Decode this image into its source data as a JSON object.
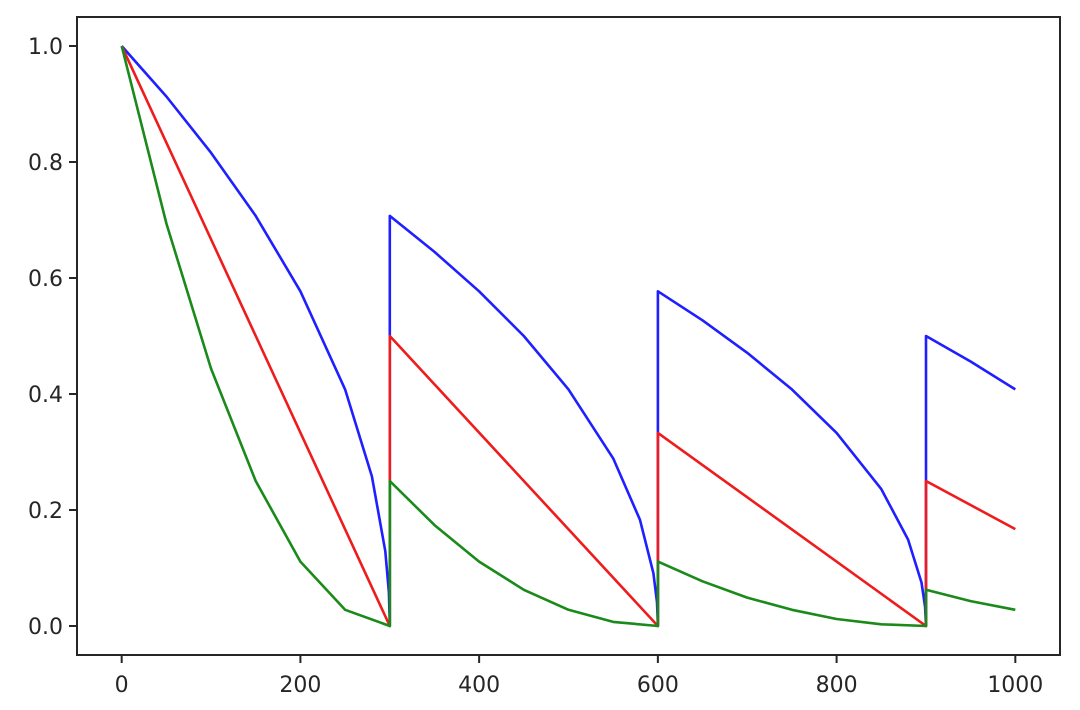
{
  "chart_data": {
    "type": "line",
    "title": "",
    "xlabel": "",
    "ylabel": "",
    "xlim": [
      -50,
      1050
    ],
    "ylim": [
      -0.05,
      1.05
    ],
    "grid": false,
    "legend": "none",
    "x_ticks": [
      0,
      200,
      400,
      600,
      800,
      1000
    ],
    "x_tick_labels": [
      "0",
      "200",
      "400",
      "600",
      "800",
      "1000"
    ],
    "y_ticks": [
      0.0,
      0.2,
      0.4,
      0.6,
      0.8,
      1.0
    ],
    "y_tick_labels": [
      "0.0",
      "0.2",
      "0.4",
      "0.6",
      "0.8",
      "1.0"
    ],
    "series": [
      {
        "color": "#1f1fff",
        "points": [
          [
            0,
            1.0
          ],
          [
            50,
            0.913
          ],
          [
            100,
            0.816
          ],
          [
            150,
            0.707
          ],
          [
            200,
            0.577
          ],
          [
            250,
            0.408
          ],
          [
            280,
            0.258
          ],
          [
            295,
            0.129
          ],
          [
            299,
            0.058
          ],
          [
            300,
            0.0
          ],
          [
            300,
            0.707
          ],
          [
            350,
            0.645
          ],
          [
            400,
            0.577
          ],
          [
            450,
            0.5
          ],
          [
            500,
            0.408
          ],
          [
            550,
            0.289
          ],
          [
            580,
            0.183
          ],
          [
            595,
            0.091
          ],
          [
            599,
            0.041
          ],
          [
            600,
            0.0
          ],
          [
            600,
            0.577
          ],
          [
            650,
            0.527
          ],
          [
            700,
            0.471
          ],
          [
            750,
            0.408
          ],
          [
            800,
            0.333
          ],
          [
            850,
            0.236
          ],
          [
            880,
            0.149
          ],
          [
            895,
            0.075
          ],
          [
            899,
            0.033
          ],
          [
            900,
            0.0
          ],
          [
            900,
            0.5
          ],
          [
            950,
            0.456
          ],
          [
            1000,
            0.408
          ]
        ]
      },
      {
        "color": "#ee1c1c",
        "points": [
          [
            0,
            1.0
          ],
          [
            300,
            0.0
          ],
          [
            300,
            0.5
          ],
          [
            600,
            0.0
          ],
          [
            600,
            0.333
          ],
          [
            900,
            0.0
          ],
          [
            900,
            0.25
          ],
          [
            1000,
            0.167
          ]
        ]
      },
      {
        "color": "#1a8a1a",
        "points": [
          [
            0,
            1.0
          ],
          [
            50,
            0.694
          ],
          [
            100,
            0.444
          ],
          [
            150,
            0.25
          ],
          [
            200,
            0.111
          ],
          [
            250,
            0.028
          ],
          [
            300,
            0.0
          ],
          [
            300,
            0.25
          ],
          [
            350,
            0.174
          ],
          [
            400,
            0.111
          ],
          [
            450,
            0.0625
          ],
          [
            500,
            0.028
          ],
          [
            550,
            0.007
          ],
          [
            600,
            0.0
          ],
          [
            600,
            0.111
          ],
          [
            650,
            0.077
          ],
          [
            700,
            0.049
          ],
          [
            750,
            0.028
          ],
          [
            800,
            0.012
          ],
          [
            850,
            0.003
          ],
          [
            900,
            0.0
          ],
          [
            900,
            0.0625
          ],
          [
            950,
            0.043
          ],
          [
            1000,
            0.028
          ]
        ]
      }
    ]
  }
}
